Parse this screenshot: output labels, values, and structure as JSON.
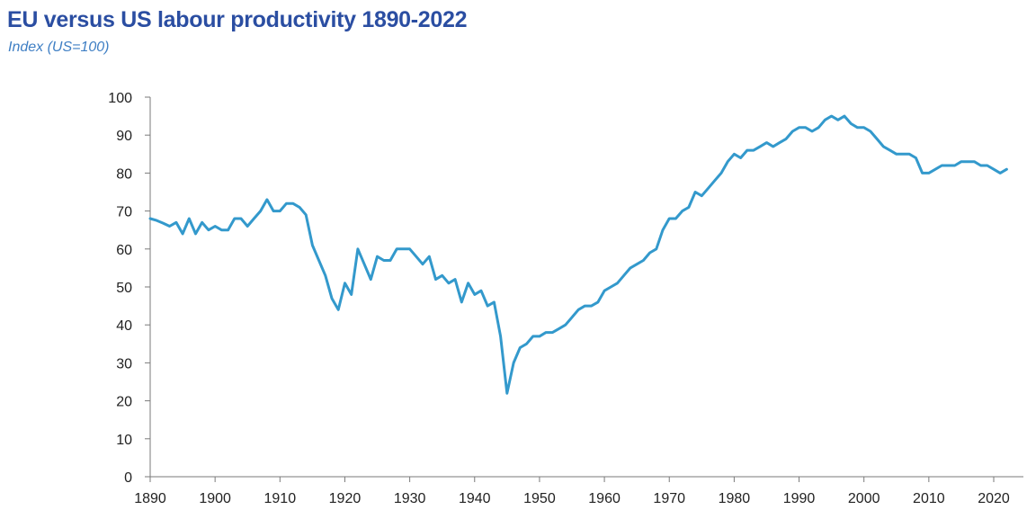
{
  "header": {
    "title": "EU versus US labour productivity 1890-2022",
    "subtitle": "Index (US=100)"
  },
  "chart_data": {
    "type": "line",
    "title": "EU versus US labour productivity 1890-2022",
    "subtitle": "Index (US=100)",
    "xlabel": "",
    "ylabel": "",
    "xlim": [
      1890,
      2023
    ],
    "ylim": [
      0,
      100
    ],
    "x_ticks": [
      1890,
      1900,
      1910,
      1920,
      1930,
      1940,
      1950,
      1960,
      1970,
      1980,
      1990,
      2000,
      2010,
      2020
    ],
    "y_ticks": [
      0,
      10,
      20,
      30,
      40,
      50,
      60,
      70,
      80,
      90,
      100
    ],
    "grid": false,
    "legend": "none",
    "line_color": "#3399cc",
    "series": [
      {
        "x": [
          1890,
          1891,
          1892,
          1893,
          1894,
          1895,
          1896,
          1897,
          1898,
          1899,
          1900,
          1901,
          1902,
          1903,
          1904,
          1905,
          1906,
          1907,
          1908,
          1909,
          1910,
          1911,
          1912,
          1913,
          1914,
          1915,
          1916,
          1917,
          1918,
          1919,
          1920,
          1921,
          1922,
          1923,
          1924,
          1925,
          1926,
          1927,
          1928,
          1929,
          1930,
          1931,
          1932,
          1933,
          1934,
          1935,
          1936,
          1937,
          1938,
          1939,
          1940,
          1941,
          1942,
          1943,
          1944,
          1945,
          1946,
          1947,
          1948,
          1949,
          1950,
          1951,
          1952,
          1953,
          1954,
          1955,
          1956,
          1957,
          1958,
          1959,
          1960,
          1961,
          1962,
          1963,
          1964,
          1965,
          1966,
          1967,
          1968,
          1969,
          1970,
          1971,
          1972,
          1973,
          1974,
          1975,
          1976,
          1977,
          1978,
          1979,
          1980,
          1981,
          1982,
          1983,
          1984,
          1985,
          1986,
          1987,
          1988,
          1989,
          1990,
          1991,
          1992,
          1993,
          1994,
          1995,
          1996,
          1997,
          1998,
          1999,
          2000,
          2001,
          2002,
          2003,
          2004,
          2005,
          2006,
          2007,
          2008,
          2009,
          2010,
          2011,
          2012,
          2013,
          2014,
          2015,
          2016,
          2017,
          2018,
          2019,
          2020,
          2021,
          2022
        ],
        "values": [
          68,
          67.5,
          66.8,
          66,
          67,
          64,
          68,
          64,
          67,
          65,
          66,
          65,
          65,
          68,
          68,
          66,
          68,
          70,
          73,
          70,
          70,
          72,
          72,
          71,
          69,
          61,
          57,
          53,
          47,
          44,
          51,
          48,
          60,
          56,
          52,
          58,
          57,
          57,
          60,
          60,
          60,
          58,
          56,
          58,
          52,
          53,
          51,
          52,
          46,
          51,
          48,
          49,
          45,
          46,
          37,
          22,
          30,
          34,
          35,
          37,
          37,
          38,
          38,
          39,
          40,
          42,
          44,
          45,
          45,
          46,
          49,
          50,
          51,
          53,
          55,
          56,
          57,
          59,
          60,
          65,
          68,
          68,
          70,
          71,
          75,
          74,
          76,
          78,
          80,
          83,
          85,
          84,
          86,
          86,
          87,
          88,
          87,
          88,
          89,
          91,
          92,
          92,
          91,
          92,
          94,
          95,
          94,
          95,
          93,
          92,
          92,
          91,
          89,
          87,
          86,
          85,
          85,
          85,
          84,
          80,
          80,
          81,
          82,
          82,
          82,
          83,
          83,
          83,
          82,
          82,
          81,
          80,
          81
        ]
      }
    ]
  }
}
